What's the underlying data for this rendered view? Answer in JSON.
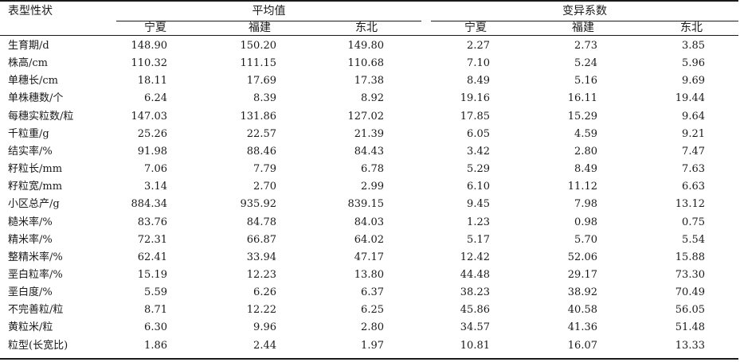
{
  "header": {
    "trait": "表型性状",
    "group_mean": "平均值",
    "group_cv": "变异系数",
    "regions": [
      "宁夏",
      "福建",
      "东北",
      "宁夏",
      "福建",
      "东北"
    ]
  },
  "rows": [
    {
      "trait": "生育期/d",
      "values": [
        "148.90",
        "150.20",
        "149.80",
        "2.27",
        "2.73",
        "3.85"
      ]
    },
    {
      "trait": "株高/cm",
      "values": [
        "110.32",
        "111.15",
        "110.68",
        "7.10",
        "5.24",
        "5.96"
      ]
    },
    {
      "trait": "单穗长/cm",
      "values": [
        "18.11",
        "17.69",
        "17.38",
        "8.49",
        "5.16",
        "9.69"
      ]
    },
    {
      "trait": "单株穗数/个",
      "values": [
        "6.24",
        "8.39",
        "8.92",
        "19.16",
        "16.11",
        "19.44"
      ]
    },
    {
      "trait": "每穗实粒数/粒",
      "values": [
        "147.03",
        "131.86",
        "127.02",
        "17.85",
        "15.29",
        "9.64"
      ]
    },
    {
      "trait": "千粒重/g",
      "values": [
        "25.26",
        "22.57",
        "21.39",
        "6.05",
        "4.59",
        "9.21"
      ]
    },
    {
      "trait": "结实率/%",
      "values": [
        "91.98",
        "88.46",
        "84.43",
        "3.42",
        "2.80",
        "7.47"
      ]
    },
    {
      "trait": "籽粒长/mm",
      "values": [
        "7.06",
        "7.79",
        "6.78",
        "5.29",
        "8.49",
        "7.63"
      ]
    },
    {
      "trait": "籽粒宽/mm",
      "values": [
        "3.14",
        "2.70",
        "2.99",
        "6.10",
        "11.12",
        "6.63"
      ]
    },
    {
      "trait": "小区总产/g",
      "values": [
        "884.34",
        "935.92",
        "839.15",
        "9.45",
        "7.98",
        "13.12"
      ]
    },
    {
      "trait": "糙米率/%",
      "values": [
        "83.76",
        "84.78",
        "84.03",
        "1.23",
        "0.98",
        "0.75"
      ]
    },
    {
      "trait": "精米率/%",
      "values": [
        "72.31",
        "66.87",
        "64.02",
        "5.17",
        "5.70",
        "5.54"
      ]
    },
    {
      "trait": "整精米率/%",
      "values": [
        "62.41",
        "33.94",
        "47.17",
        "12.42",
        "52.06",
        "15.88"
      ]
    },
    {
      "trait": "垩白粒率/%",
      "values": [
        "15.19",
        "12.23",
        "13.80",
        "44.48",
        "29.17",
        "73.30"
      ]
    },
    {
      "trait": "垩白度/%",
      "values": [
        "5.59",
        "6.26",
        "6.37",
        "38.23",
        "38.92",
        "70.49"
      ]
    },
    {
      "trait": "不完善粒/粒",
      "values": [
        "8.71",
        "12.22",
        "6.25",
        "45.86",
        "40.58",
        "56.05"
      ]
    },
    {
      "trait": "黄粒米/粒",
      "values": [
        "6.30",
        "9.96",
        "2.80",
        "34.57",
        "41.36",
        "51.48"
      ]
    },
    {
      "trait": "粒型(长宽比)",
      "values": [
        "1.86",
        "2.44",
        "1.97",
        "10.81",
        "16.07",
        "13.33"
      ]
    }
  ]
}
